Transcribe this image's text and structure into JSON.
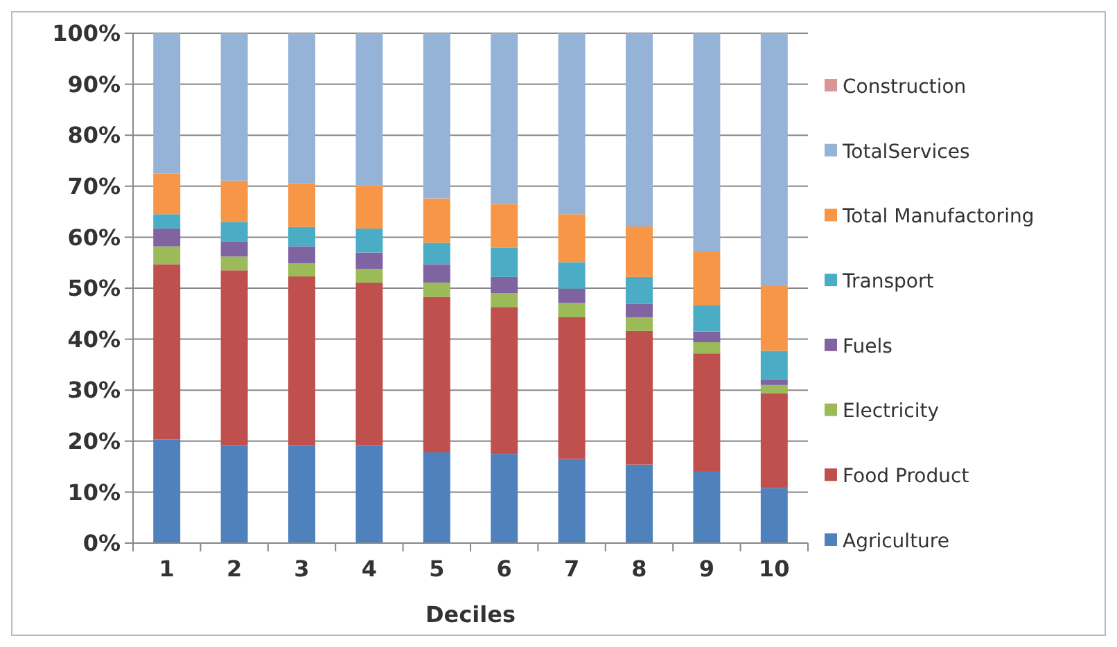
{
  "chart_data": {
    "type": "bar",
    "stacked": true,
    "xlabel": "Deciles",
    "categories": [
      "1",
      "2",
      "3",
      "4",
      "5",
      "6",
      "7",
      "8",
      "9",
      "10"
    ],
    "ylim": [
      0,
      100
    ],
    "yticks": [
      {
        "value": 0,
        "label": "0%"
      },
      {
        "value": 10,
        "label": "10%"
      },
      {
        "value": 20,
        "label": "20%"
      },
      {
        "value": 30,
        "label": "30%"
      },
      {
        "value": 40,
        "label": "40%"
      },
      {
        "value": 50,
        "label": "50%"
      },
      {
        "value": 60,
        "label": "60%"
      },
      {
        "value": 70,
        "label": "70%"
      },
      {
        "value": 80,
        "label": "80%"
      },
      {
        "value": 90,
        "label": "90%"
      },
      {
        "value": 100,
        "label": "100%"
      }
    ],
    "grid": "y",
    "legend": "right",
    "series": [
      {
        "name": "Agriculture",
        "color": "#4f81bd",
        "values": [
          20.3,
          19.1,
          19.1,
          19.1,
          17.8,
          17.5,
          16.5,
          15.4,
          14.0,
          10.8
        ]
      },
      {
        "name": "Food Product",
        "color": "#c0504d",
        "values": [
          34.4,
          34.4,
          33.2,
          32.0,
          30.5,
          28.8,
          27.8,
          26.2,
          23.2,
          18.6
        ]
      },
      {
        "name": "Electricity",
        "color": "#9bbb59",
        "values": [
          3.5,
          2.7,
          2.6,
          2.7,
          2.8,
          2.7,
          2.8,
          2.7,
          2.2,
          1.6
        ]
      },
      {
        "name": "Fuels",
        "color": "#8064a2",
        "values": [
          3.5,
          3.0,
          3.3,
          3.2,
          3.6,
          3.2,
          2.8,
          2.6,
          2.1,
          1.1
        ]
      },
      {
        "name": "Transport",
        "color": "#4bacc6",
        "values": [
          2.8,
          3.8,
          3.8,
          4.7,
          4.2,
          5.7,
          5.2,
          5.3,
          5.1,
          5.6
        ]
      },
      {
        "name": "Total Manufactoring",
        "color": "#f79646",
        "values": [
          8.0,
          8.1,
          8.6,
          8.5,
          8.7,
          8.6,
          9.4,
          9.9,
          10.6,
          12.7
        ]
      },
      {
        "name": "TotalServices",
        "color": "#95b3d7",
        "values": [
          27.5,
          28.9,
          29.4,
          29.8,
          32.4,
          33.5,
          35.5,
          37.9,
          42.8,
          49.6
        ]
      },
      {
        "name": "Construction",
        "color": "#d99694",
        "values": [
          0,
          0,
          0,
          0,
          0,
          0,
          0,
          0,
          0,
          0
        ]
      }
    ]
  }
}
